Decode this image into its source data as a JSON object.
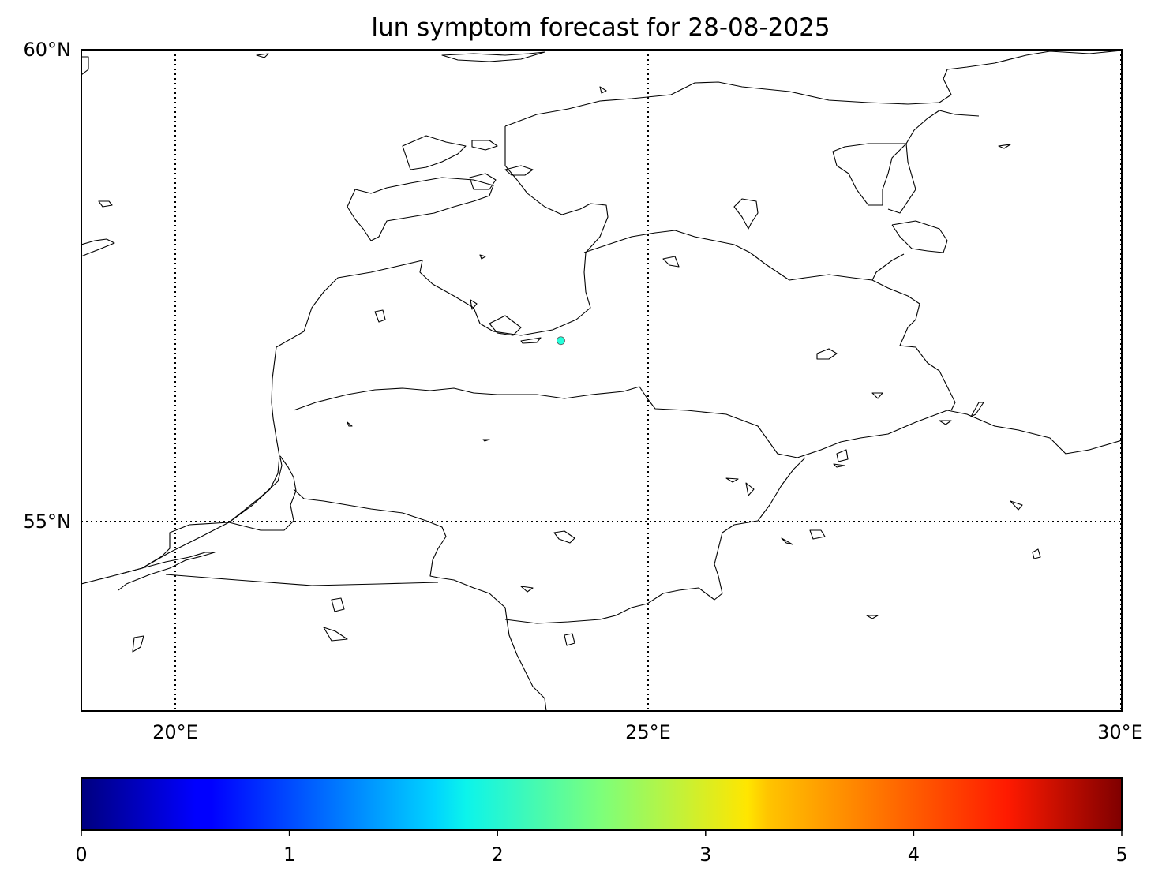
{
  "title": "lun symptom forecast for 28-08-2025",
  "map": {
    "lat_ticks": [
      {
        "value": 60,
        "label": "60°N"
      },
      {
        "value": 55,
        "label": "55°N"
      }
    ],
    "lon_ticks": [
      {
        "value": 20,
        "label": "20°E"
      },
      {
        "value": 25,
        "label": "25°E"
      },
      {
        "value": 30,
        "label": "30°E"
      }
    ],
    "gridlines": "dotted"
  },
  "chart_data": {
    "type": "scatter",
    "x": [
      24.07
    ],
    "y": [
      56.92
    ],
    "values": [
      2.05
    ],
    "extent": {
      "lon": [
        19,
        30
      ],
      "lat": [
        53,
        60
      ]
    },
    "colorbar": {
      "colormap": "jet",
      "range": [
        0,
        5
      ],
      "ticks": [
        "0",
        "1",
        "2",
        "3",
        "4",
        "5"
      ]
    }
  }
}
